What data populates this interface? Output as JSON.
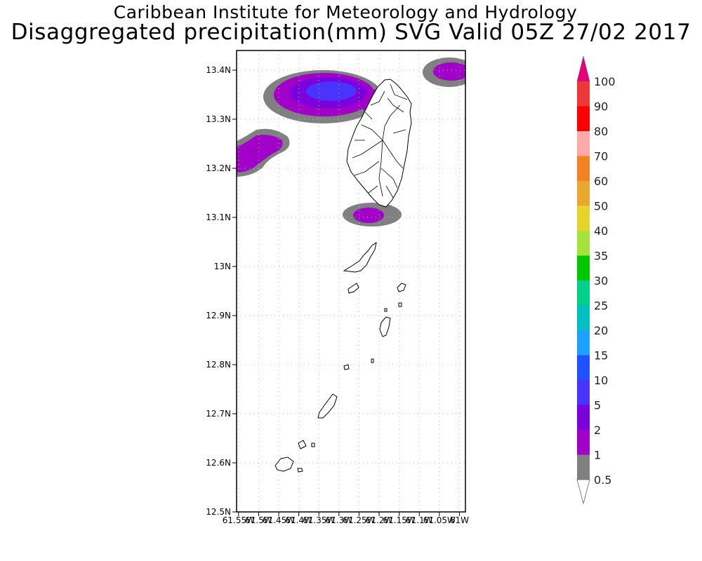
{
  "title": {
    "line1": "Caribbean Institute for Meteorology and Hydrology",
    "line2": "Disaggregated precipitation(mm) SVG Valid 05Z 27/02 2017"
  },
  "map": {
    "lat_labels": [
      "13.4N",
      "13.3N",
      "13.2N",
      "13.1N",
      "13N",
      "12.9N",
      "12.8N",
      "12.7N",
      "12.6N",
      "12.5N"
    ],
    "lat_values": [
      13.4,
      13.3,
      13.2,
      13.1,
      13.0,
      12.9,
      12.8,
      12.7,
      12.6,
      12.5
    ],
    "lon_labels": [
      "61.55W",
      "61.5W",
      "61.45W",
      "61.4W",
      "61.35W",
      "61.3W",
      "61.25W",
      "61.2W",
      "61.15W",
      "61.1W",
      "61.05W",
      "61W"
    ],
    "lon_values": [
      -61.55,
      -61.5,
      -61.45,
      -61.4,
      -61.35,
      -61.3,
      -61.25,
      -61.2,
      -61.15,
      -61.1,
      -61.05,
      -61.0
    ],
    "lat_range": [
      12.5,
      13.44
    ],
    "lon_range": [
      -61.555,
      -60.985
    ]
  },
  "legend": {
    "labels": [
      "100",
      "90",
      "80",
      "70",
      "60",
      "50",
      "40",
      "35",
      "30",
      "25",
      "20",
      "15",
      "10",
      "5",
      "2",
      "1",
      "0.5"
    ],
    "colors": [
      "#e6007a",
      "#ee3838",
      "#ff0000",
      "#ffa8a8",
      "#f28224",
      "#e8a830",
      "#e6d42c",
      "#a6e23a",
      "#00c800",
      "#00d08a",
      "#00c0c0",
      "#1ea0ff",
      "#2050ff",
      "#4a32ff",
      "#7a00dc",
      "#a000c8",
      "#808080"
    ],
    "top_arrow_color": "#e6007a",
    "bottom_arrow_color": "#ffffff"
  }
}
